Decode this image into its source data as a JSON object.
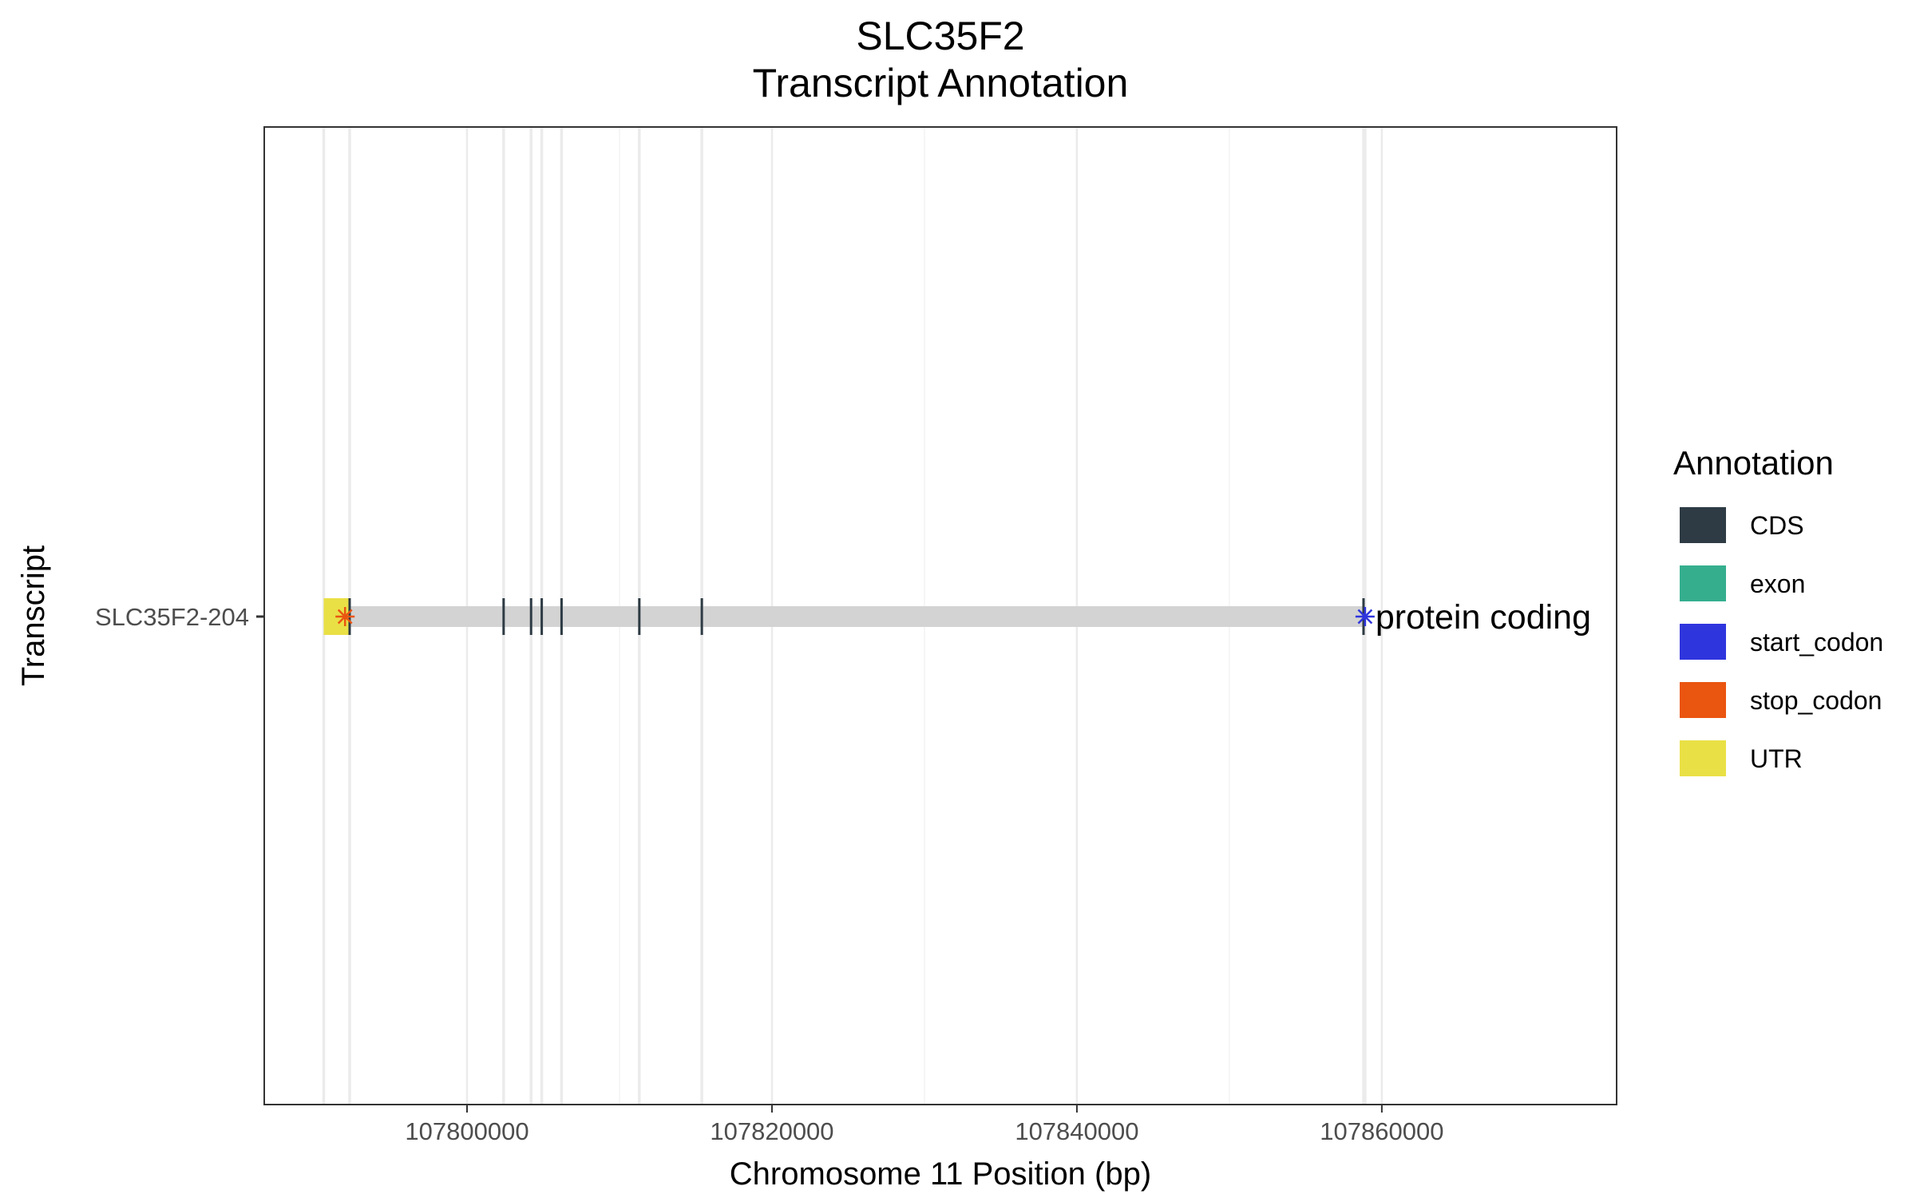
{
  "chart_data": {
    "type": "gene-track",
    "title": "SLC35F2",
    "subtitle": "Transcript Annotation",
    "xlabel": "Chromosome 11 Position (bp)",
    "ylabel": "Transcript",
    "xlim": [
      107786700,
      107875400
    ],
    "x_ticks": [
      107800000,
      107820000,
      107840000,
      107860000
    ],
    "x_tick_labels": [
      "107800000",
      "107820000",
      "107840000",
      "107860000"
    ],
    "grid": true,
    "transcripts": [
      {
        "name": "SLC35F2-204",
        "biotype_label": "protein coding",
        "start": 107790600,
        "end": 107858900,
        "utr": [
          [
            107790600,
            107792300
          ]
        ],
        "cds": [
          107792300,
          107802400,
          107804200,
          107804900,
          107806200,
          107811300,
          107815400,
          107858800
        ],
        "stop_codon": 107792000,
        "start_codon": 107858900
      }
    ],
    "legend": {
      "title": "Annotation",
      "position": "right",
      "entries": [
        {
          "label": "CDS",
          "color": "#2e3b44"
        },
        {
          "label": "exon",
          "color": "#35ae8e"
        },
        {
          "label": "start_codon",
          "color": "#2f35dd"
        },
        {
          "label": "stop_codon",
          "color": "#ea5510"
        },
        {
          "label": "UTR",
          "color": "#e9e046"
        }
      ]
    },
    "colors": {
      "transcript_bar": "#d3d3d3",
      "grid": "#ebebeb",
      "panel_border": "#333333"
    }
  }
}
